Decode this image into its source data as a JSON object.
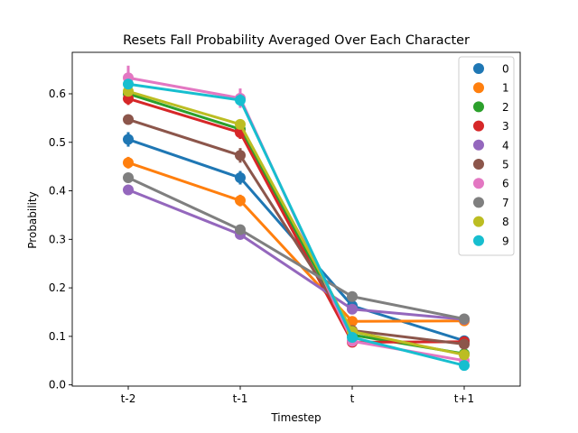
{
  "chart_data": {
    "type": "line",
    "title": "Resets Fall Probability Averaged Over Each Character",
    "xlabel": "Timestep",
    "ylabel": "Probability",
    "categories": [
      "t-2",
      "t-1",
      "t",
      "t+1"
    ],
    "ylim": [
      -0.0025,
      0.6855
    ],
    "yticks": [
      0.0,
      0.1,
      0.2,
      0.3,
      0.4,
      0.5,
      0.6
    ],
    "ytick_labels": [
      "0.0",
      "0.1",
      "0.2",
      "0.3",
      "0.4",
      "0.5",
      "0.6"
    ],
    "grid": false,
    "legend_position": "top-right",
    "series": [
      {
        "name": "0",
        "color": "#1f77b4",
        "values": [
          0.506,
          0.427,
          0.163,
          0.091
        ],
        "error": [
          0.015,
          0.014,
          0.005,
          0.005
        ]
      },
      {
        "name": "1",
        "color": "#ff7f0e",
        "values": [
          0.458,
          0.38,
          0.131,
          0.132
        ],
        "error": [
          0.012,
          0.012,
          0.006,
          0.006
        ]
      },
      {
        "name": "2",
        "color": "#2ca02c",
        "values": [
          0.6,
          0.527,
          0.103,
          0.064
        ],
        "error": [
          0.01,
          0.012,
          0.004,
          0.004
        ]
      },
      {
        "name": "3",
        "color": "#d62728",
        "values": [
          0.59,
          0.52,
          0.088,
          0.089
        ],
        "error": [
          0.013,
          0.013,
          0.004,
          0.004
        ]
      },
      {
        "name": "4",
        "color": "#9467bd",
        "values": [
          0.402,
          0.31,
          0.156,
          0.135
        ],
        "error": [
          0.007,
          0.007,
          0.004,
          0.005
        ]
      },
      {
        "name": "5",
        "color": "#8c564b",
        "values": [
          0.547,
          0.473,
          0.112,
          0.084
        ],
        "error": [
          0.008,
          0.015,
          0.004,
          0.004
        ]
      },
      {
        "name": "6",
        "color": "#e377c2",
        "values": [
          0.633,
          0.591,
          0.09,
          0.05
        ],
        "error": [
          0.025,
          0.02,
          0.004,
          0.004
        ]
      },
      {
        "name": "7",
        "color": "#7f7f7f",
        "values": [
          0.427,
          0.32,
          0.182,
          0.136
        ],
        "error": [
          0.008,
          0.008,
          0.005,
          0.008
        ]
      },
      {
        "name": "8",
        "color": "#bcbd22",
        "values": [
          0.605,
          0.537,
          0.11,
          0.062
        ],
        "error": [
          0.008,
          0.01,
          0.004,
          0.004
        ]
      },
      {
        "name": "9",
        "color": "#17becf",
        "values": [
          0.62,
          0.587,
          0.098,
          0.04
        ],
        "error": [
          0.008,
          0.012,
          0.004,
          0.004
        ]
      }
    ]
  }
}
